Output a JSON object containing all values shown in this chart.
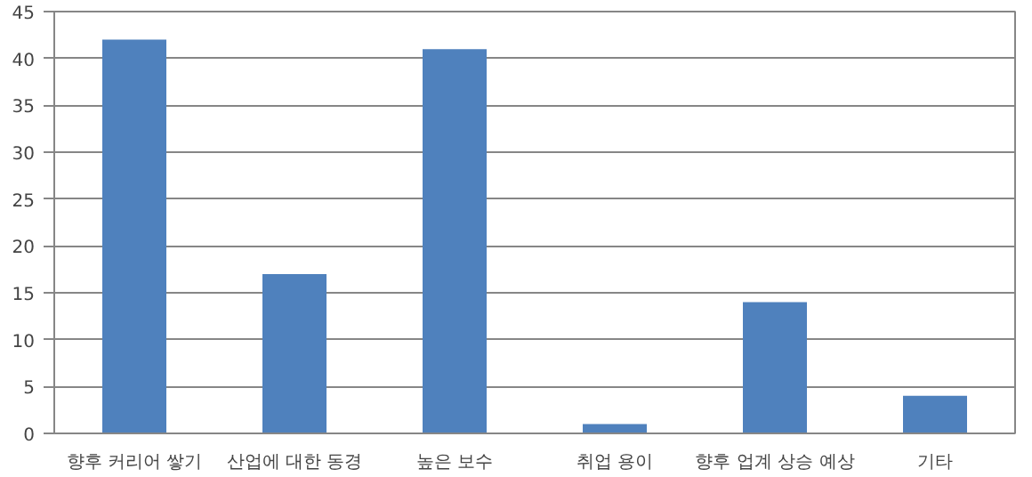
{
  "chart_data": {
    "type": "bar",
    "categories": [
      "향후 커리어 쌓기",
      "산업에 대한 동경",
      "높은 보수",
      "취업 용이",
      "향후 업계 상승 예상",
      "기타"
    ],
    "values": [
      42,
      17,
      41,
      1,
      14,
      4
    ],
    "color": "#4f81bd",
    "ylim": [
      0,
      45
    ],
    "yticks": [
      0,
      5,
      10,
      15,
      20,
      25,
      30,
      35,
      40,
      45
    ],
    "grid": "y"
  }
}
